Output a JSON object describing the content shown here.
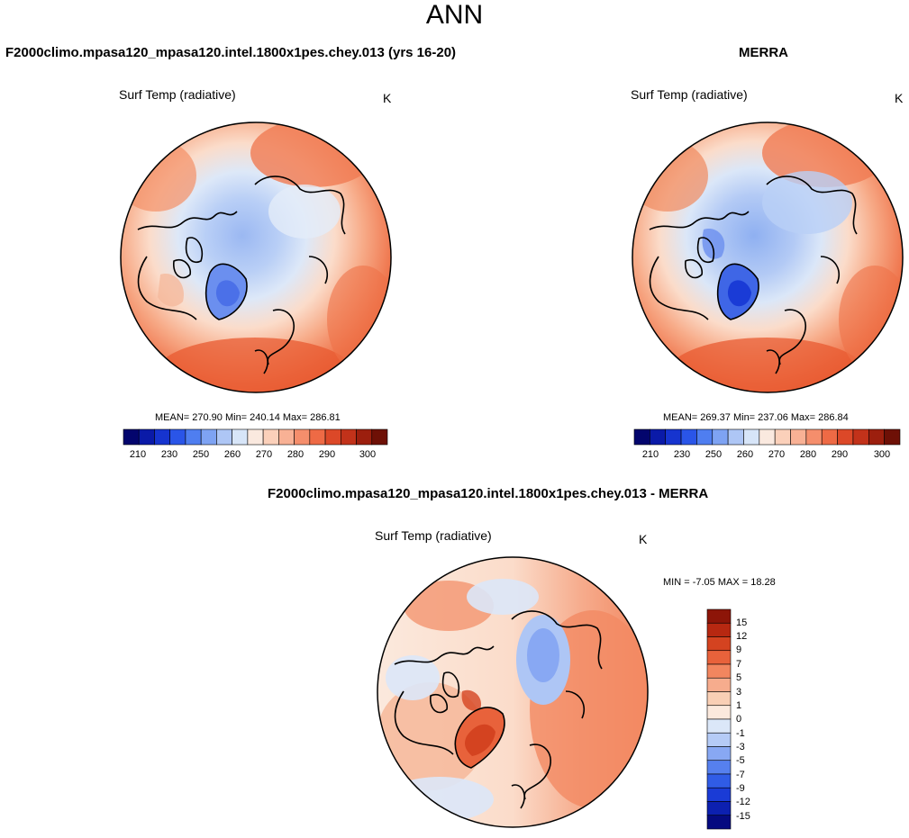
{
  "main_title": "ANN",
  "palettes": {
    "abs": [
      "#03056d",
      "#0a1aa8",
      "#1634cf",
      "#2a55e8",
      "#4f7ef0",
      "#7ea3f3",
      "#aec6f5",
      "#d7e5f8",
      "#fae9df",
      "#fbd0ba",
      "#f8b195",
      "#f58e6c",
      "#ee6a45",
      "#dc4828",
      "#c2321a",
      "#9c1f0e",
      "#6e1006"
    ],
    "diff": [
      "#050a80",
      "#0c20b0",
      "#1a3bd6",
      "#305ce6",
      "#5680ee",
      "#88a8f3",
      "#b5cbf6",
      "#dbe7f8",
      "#fbe9dd",
      "#f9cfb5",
      "#f6ac8d",
      "#f2865f",
      "#e8623b",
      "#d44320",
      "#b72811",
      "#8d1508"
    ]
  },
  "panels": {
    "left": {
      "title": "F2000climo.mpasa120_mpasa120.intel.1800x1pes.chey.013 (yrs 16-20)",
      "variable": "Surf Temp (radiative)",
      "units": "K",
      "stats": "MEAN= 270.90  Min= 240.14  Max= 286.81",
      "colorbar_ticks": [
        "210",
        "230",
        "250",
        "260",
        "270",
        "280",
        "290",
        "300"
      ]
    },
    "right": {
      "title": "MERRA",
      "variable": "Surf Temp (radiative)",
      "units": "K",
      "stats": "MEAN= 269.37  Min= 237.06  Max= 286.84",
      "colorbar_ticks": [
        "210",
        "230",
        "250",
        "260",
        "270",
        "280",
        "290",
        "300"
      ]
    },
    "diff": {
      "title": "F2000climo.mpasa120_mpasa120.intel.1800x1pes.chey.013 - MERRA",
      "variable": "Surf Temp (radiative)",
      "units": "K",
      "stats": "MIN =  -7.05 MAX =  18.28",
      "colorbar_ticks": [
        "15",
        "12",
        "9",
        "7",
        "5",
        "3",
        "1",
        "0",
        "-1",
        "-3",
        "-5",
        "-7",
        "-9",
        "-12",
        "-15"
      ]
    }
  },
  "chart_data": [
    {
      "type": "heatmap",
      "projection": "north polar stereographic",
      "title": "F2000climo.mpasa120_mpasa120.intel.1800x1pes.chey.013 (yrs 16-20)",
      "variable": "Surf Temp (radiative)",
      "units": "K",
      "mean": 270.9,
      "min": 240.14,
      "max": 286.81,
      "colorbar_levels": [
        210,
        230,
        250,
        260,
        270,
        280,
        290,
        300
      ]
    },
    {
      "type": "heatmap",
      "projection": "north polar stereographic",
      "title": "MERRA",
      "variable": "Surf Temp (radiative)",
      "units": "K",
      "mean": 269.37,
      "min": 237.06,
      "max": 286.84,
      "colorbar_levels": [
        210,
        230,
        250,
        260,
        270,
        280,
        290,
        300
      ]
    },
    {
      "type": "heatmap",
      "projection": "north polar stereographic",
      "title": "F2000climo.mpasa120_mpasa120.intel.1800x1pes.chey.013 - MERRA",
      "variable": "Surf Temp (radiative)",
      "units": "K",
      "min": -7.05,
      "max": 18.28,
      "colorbar_levels": [
        15,
        12,
        9,
        7,
        5,
        3,
        1,
        0,
        -1,
        -3,
        -5,
        -7,
        -9,
        -12,
        -15
      ]
    }
  ]
}
